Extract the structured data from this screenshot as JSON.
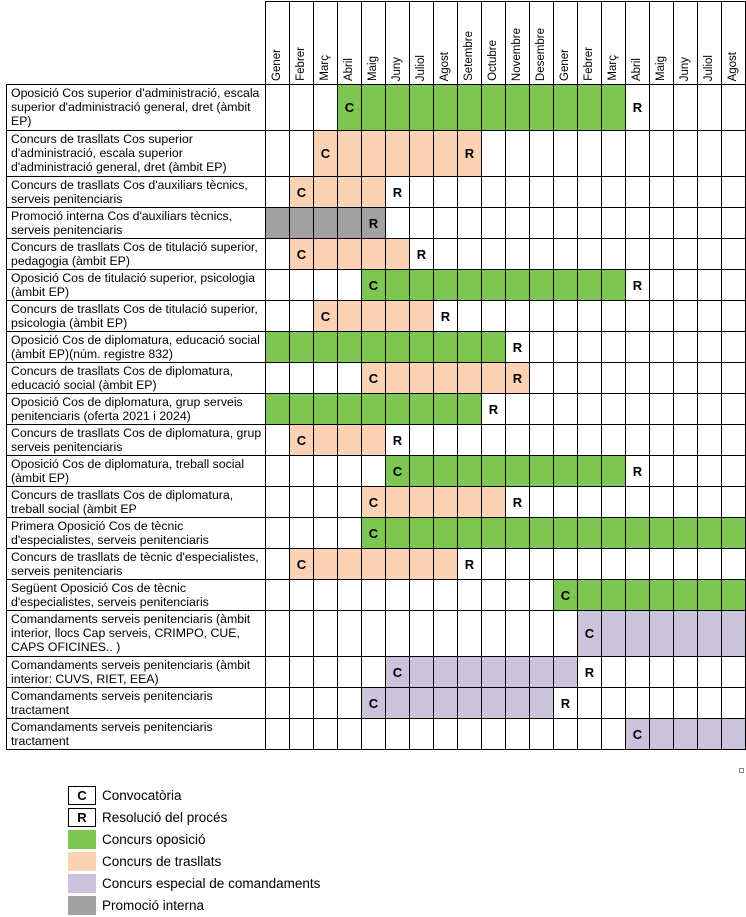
{
  "months": [
    "Gener",
    "Febrer",
    "Març",
    "Abril",
    "Maig",
    "Juny",
    "Juliol",
    "Agost",
    "Setembre",
    "Octubre",
    "Novembre",
    "Desembre",
    "Gener",
    "Febrer",
    "Març",
    "Abril",
    "Maig",
    "Juny",
    "Juliol",
    "Agost"
  ],
  "rows": [
    {
      "label": "Oposició Cos superior d'administració, escala superior d'administració general, dret (àmbit EP)",
      "bars": [
        {
          "from": 3,
          "to": 14,
          "color": "green"
        }
      ],
      "marks": {
        "3": "C",
        "15": "R"
      }
    },
    {
      "label": "Concurs de trasllats Cos superior d'administració, escala superior d'administració general, dret (àmbit EP)",
      "bars": [
        {
          "from": 2,
          "to": 8,
          "color": "orange"
        }
      ],
      "marks": {
        "2": "C",
        "8": "R"
      }
    },
    {
      "label": "Concurs de trasllats Cos d'auxiliars tècnics, serveis penitenciaris",
      "bars": [
        {
          "from": 1,
          "to": 4,
          "color": "orange"
        }
      ],
      "marks": {
        "1": "C",
        "5": "R"
      }
    },
    {
      "label": "Promoció interna  Cos d'auxiliars tècnics, serveis penitenciaris",
      "bars": [
        {
          "from": 0,
          "to": 4,
          "color": "gray"
        }
      ],
      "marks": {
        "4": "R"
      }
    },
    {
      "label": "Concurs de trasllats Cos de titulació superior, pedagogia (àmbit EP)",
      "bars": [
        {
          "from": 1,
          "to": 5,
          "color": "orange"
        }
      ],
      "marks": {
        "1": "C",
        "6": "R"
      }
    },
    {
      "label": "Oposició Cos de titulació superior, psicologia (àmbit EP)",
      "bars": [
        {
          "from": 4,
          "to": 14,
          "color": "green"
        }
      ],
      "marks": {
        "4": "C",
        "15": "R"
      }
    },
    {
      "label": "Concurs de trasllats Cos de titulació superior, psicologia (àmbit EP)",
      "bars": [
        {
          "from": 2,
          "to": 6,
          "color": "orange"
        }
      ],
      "marks": {
        "2": "C",
        "7": "R"
      }
    },
    {
      "label": "Oposició Cos de diplomatura, educació social (àmbit EP)(núm. registre 832)",
      "bars": [
        {
          "from": 0,
          "to": 9,
          "color": "green"
        }
      ],
      "marks": {
        "10": "R"
      }
    },
    {
      "label": "Concurs de trasllats Cos de diplomatura, educació social (àmbit EP)",
      "bars": [
        {
          "from": 4,
          "to": 10,
          "color": "orange"
        }
      ],
      "marks": {
        "4": "C",
        "10": "R"
      }
    },
    {
      "label": "Oposició Cos de diplomatura, grup serveis penitenciaris (oferta 2021 i 2024)",
      "bars": [
        {
          "from": 0,
          "to": 8,
          "color": "green"
        }
      ],
      "marks": {
        "9": "R"
      }
    },
    {
      "label": "Concurs de trasllats Cos de diplomatura, grup serveis penitenciaris",
      "bars": [
        {
          "from": 1,
          "to": 4,
          "color": "orange"
        }
      ],
      "marks": {
        "1": "C",
        "5": "R"
      }
    },
    {
      "label": "Oposició Cos de diplomatura, treball social (àmbit EP)",
      "bars": [
        {
          "from": 5,
          "to": 14,
          "color": "green"
        }
      ],
      "marks": {
        "5": "C",
        "15": "R"
      }
    },
    {
      "label": "Concurs de trasllats Cos de diplomatura, treball social (àmbit EP",
      "bars": [
        {
          "from": 4,
          "to": 9,
          "color": "orange"
        }
      ],
      "marks": {
        "4": "C",
        "10": "R"
      }
    },
    {
      "label": "Primera Oposició Cos de tècnic d'especialistes, serveis penitenciaris",
      "bars": [
        {
          "from": 4,
          "to": 19,
          "color": "green"
        }
      ],
      "marks": {
        "4": "C"
      }
    },
    {
      "label": "Concurs de trasllats de tècnic d'especialistes, serveis penitenciaris",
      "bars": [
        {
          "from": 1,
          "to": 7,
          "color": "orange"
        }
      ],
      "marks": {
        "1": "C",
        "8": "R"
      }
    },
    {
      "label": "Següent Oposició Cos de tècnic d'especialistes, serveis penitenciaris",
      "bars": [
        {
          "from": 12,
          "to": 19,
          "color": "green"
        }
      ],
      "marks": {
        "12": "C"
      }
    },
    {
      "label": "Comandaments serveis penitenciaris (àmbit interior, llocs Cap serveis, CRIMPO, CUE, CAPS OFICINES.. )",
      "bars": [
        {
          "from": 13,
          "to": 19,
          "color": "purple"
        }
      ],
      "marks": {
        "13": "C"
      }
    },
    {
      "label": "Comandaments serveis penitenciaris (àmbit interior: CUVS, RIET, EEA)",
      "bars": [
        {
          "from": 5,
          "to": 12,
          "color": "purple"
        }
      ],
      "marks": {
        "5": "C",
        "13": "R"
      }
    },
    {
      "label": "Comandaments serveis penitenciaris tractament",
      "bars": [
        {
          "from": 4,
          "to": 11,
          "color": "purple"
        }
      ],
      "marks": {
        "4": "C",
        "12": "R"
      }
    },
    {
      "label": "Comandaments serveis penitenciaris tractament",
      "bars": [
        {
          "from": 15,
          "to": 19,
          "color": "purple"
        }
      ],
      "marks": {
        "15": "C"
      }
    }
  ],
  "colors": {
    "green": "#7dc652",
    "orange": "#fbd2b4",
    "purple": "#cbc3dc",
    "gray": "#a1a1a1"
  },
  "legend": [
    {
      "key": "C",
      "label": "Convocatòria",
      "type": "letter"
    },
    {
      "key": "R",
      "label": "Resolució del procés",
      "type": "letter"
    },
    {
      "key": "green",
      "label": "Concurs oposició",
      "type": "color"
    },
    {
      "key": "orange",
      "label": "Concurs de trasllats",
      "type": "color"
    },
    {
      "key": "purple",
      "label": "Concurs especial de comandaments",
      "type": "color"
    },
    {
      "key": "gray",
      "label": "Promoció interna",
      "type": "color"
    }
  ]
}
